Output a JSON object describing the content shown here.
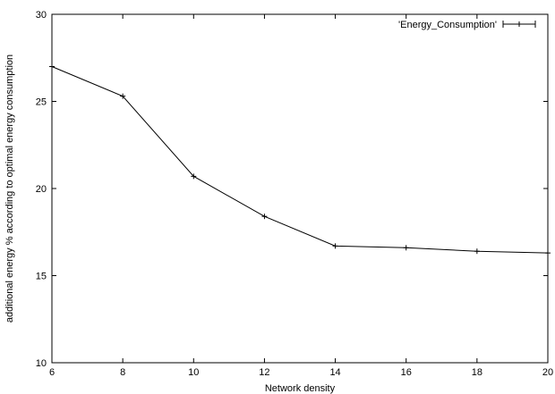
{
  "chart_data": {
    "type": "line",
    "title": "",
    "xlabel": "Network density",
    "ylabel": "additional energy % according to optimal energy consumption",
    "xlim": [
      6,
      20
    ],
    "ylim": [
      10,
      30
    ],
    "x_ticks": [
      "6",
      "8",
      "10",
      "12",
      "14",
      "16",
      "18",
      "20"
    ],
    "y_ticks": [
      "10",
      "15",
      "20",
      "25",
      "30"
    ],
    "grid": false,
    "legend_position": "top-right",
    "series": [
      {
        "name": "'Energy_Consumption'",
        "x": [
          6,
          8,
          10,
          12,
          14,
          16,
          18,
          20
        ],
        "y": [
          27.0,
          25.3,
          20.7,
          18.4,
          16.7,
          16.6,
          16.4,
          16.3
        ],
        "color": "#000000",
        "marker": "plus"
      }
    ]
  }
}
